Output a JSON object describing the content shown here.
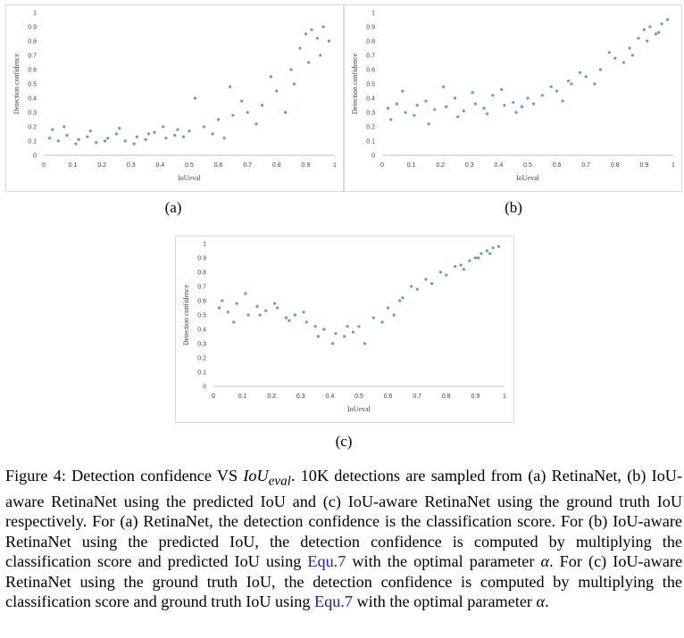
{
  "chart_data": [
    {
      "type": "scatter",
      "sublabel": "(a)",
      "xlabel": "IoUeval",
      "ylabel": "Detection confidence",
      "xlim": [
        0,
        1
      ],
      "ylim": [
        0,
        1
      ],
      "xticks": [
        "0",
        "0.1",
        "0.2",
        "0.3",
        "0.4",
        "0.5",
        "0.6",
        "0.7",
        "0.8",
        "0.9",
        "1"
      ],
      "yticks": [
        "0",
        "0.1",
        "0.2",
        "0.3",
        "0.4",
        "0.5",
        "0.6",
        "0.7",
        "0.8",
        "0.9",
        "1"
      ],
      "grid": false,
      "color": "#5b9bd5",
      "x": [
        0.02,
        0.05,
        0.08,
        0.12,
        0.15,
        0.18,
        0.22,
        0.25,
        0.28,
        0.32,
        0.35,
        0.38,
        0.42,
        0.45,
        0.48,
        0.03,
        0.07,
        0.11,
        0.16,
        0.21,
        0.26,
        0.31,
        0.36,
        0.41,
        0.46,
        0.5,
        0.55,
        0.6,
        0.65,
        0.7,
        0.75,
        0.8,
        0.85,
        0.88,
        0.9,
        0.92,
        0.94,
        0.96,
        0.98,
        0.86,
        0.91,
        0.95,
        0.62,
        0.68,
        0.73,
        0.78,
        0.83,
        0.52,
        0.58,
        0.64
      ],
      "y": [
        0.12,
        0.1,
        0.14,
        0.11,
        0.13,
        0.09,
        0.12,
        0.15,
        0.1,
        0.13,
        0.11,
        0.16,
        0.12,
        0.14,
        0.13,
        0.18,
        0.2,
        0.08,
        0.17,
        0.1,
        0.19,
        0.08,
        0.15,
        0.2,
        0.18,
        0.17,
        0.2,
        0.25,
        0.28,
        0.3,
        0.35,
        0.45,
        0.6,
        0.75,
        0.85,
        0.88,
        0.82,
        0.9,
        0.8,
        0.5,
        0.65,
        0.7,
        0.12,
        0.38,
        0.22,
        0.55,
        0.3,
        0.4,
        0.15,
        0.48
      ]
    },
    {
      "type": "scatter",
      "sublabel": "(b)",
      "xlabel": "IoUeval",
      "ylabel": "Detection confidence",
      "xlim": [
        0,
        1
      ],
      "ylim": [
        0,
        1
      ],
      "xticks": [
        "0",
        "0.1",
        "0.2",
        "0.3",
        "0.4",
        "0.5",
        "0.6",
        "0.7",
        "0.8",
        "0.9",
        "1"
      ],
      "yticks": [
        "0",
        "0.1",
        "0.2",
        "0.3",
        "0.4",
        "0.5",
        "0.6",
        "0.7",
        "0.8",
        "0.9",
        "1"
      ],
      "grid": false,
      "color": "#5b9bd5",
      "x": [
        0.02,
        0.05,
        0.08,
        0.12,
        0.15,
        0.18,
        0.22,
        0.25,
        0.28,
        0.32,
        0.35,
        0.38,
        0.42,
        0.45,
        0.48,
        0.03,
        0.07,
        0.11,
        0.16,
        0.21,
        0.26,
        0.31,
        0.36,
        0.41,
        0.46,
        0.5,
        0.55,
        0.6,
        0.65,
        0.7,
        0.75,
        0.8,
        0.85,
        0.88,
        0.9,
        0.92,
        0.94,
        0.96,
        0.98,
        0.86,
        0.91,
        0.95,
        0.62,
        0.68,
        0.73,
        0.78,
        0.83,
        0.52,
        0.58,
        0.64
      ],
      "y": [
        0.33,
        0.36,
        0.3,
        0.35,
        0.38,
        0.32,
        0.34,
        0.4,
        0.31,
        0.36,
        0.33,
        0.42,
        0.35,
        0.37,
        0.34,
        0.25,
        0.45,
        0.28,
        0.22,
        0.48,
        0.27,
        0.44,
        0.29,
        0.46,
        0.3,
        0.4,
        0.42,
        0.45,
        0.5,
        0.55,
        0.6,
        0.68,
        0.75,
        0.82,
        0.88,
        0.9,
        0.85,
        0.92,
        0.95,
        0.7,
        0.8,
        0.86,
        0.38,
        0.58,
        0.5,
        0.72,
        0.65,
        0.36,
        0.48,
        0.52
      ]
    },
    {
      "type": "scatter",
      "sublabel": "(c)",
      "xlabel": "IoUeval",
      "ylabel": "Detection confidence",
      "xlim": [
        0,
        1
      ],
      "ylim": [
        0,
        1
      ],
      "xticks": [
        "0",
        "0.1",
        "0.2",
        "0.3",
        "0.4",
        "0.5",
        "0.6",
        "0.7",
        "0.8",
        "0.9",
        "1"
      ],
      "yticks": [
        "0",
        "0.1",
        "0.2",
        "0.3",
        "0.4",
        "0.5",
        "0.6",
        "0.7",
        "0.8",
        "0.9",
        "1"
      ],
      "grid": false,
      "color": "#5b9bd5",
      "x": [
        0.02,
        0.05,
        0.08,
        0.12,
        0.15,
        0.18,
        0.22,
        0.25,
        0.28,
        0.32,
        0.35,
        0.38,
        0.42,
        0.45,
        0.48,
        0.03,
        0.07,
        0.11,
        0.16,
        0.21,
        0.26,
        0.31,
        0.36,
        0.41,
        0.46,
        0.5,
        0.55,
        0.6,
        0.65,
        0.7,
        0.75,
        0.8,
        0.85,
        0.88,
        0.9,
        0.92,
        0.94,
        0.96,
        0.98,
        0.86,
        0.91,
        0.95,
        0.62,
        0.68,
        0.73,
        0.78,
        0.83,
        0.52,
        0.58,
        0.64
      ],
      "y": [
        0.55,
        0.52,
        0.58,
        0.5,
        0.56,
        0.53,
        0.55,
        0.48,
        0.5,
        0.45,
        0.42,
        0.4,
        0.37,
        0.35,
        0.38,
        0.6,
        0.45,
        0.65,
        0.5,
        0.58,
        0.46,
        0.52,
        0.35,
        0.3,
        0.42,
        0.42,
        0.48,
        0.55,
        0.62,
        0.68,
        0.72,
        0.78,
        0.85,
        0.88,
        0.9,
        0.93,
        0.95,
        0.97,
        0.98,
        0.82,
        0.9,
        0.93,
        0.5,
        0.7,
        0.75,
        0.8,
        0.84,
        0.3,
        0.45,
        0.6
      ]
    }
  ],
  "caption": {
    "label": "Figure 4:",
    "title_pre": "Detection confidence VS",
    "title_math_base": "IoU",
    "title_math_sub": "eval",
    "text_1": ". 10K detections are sampled from (a) RetinaNet, (b) IoU-aware RetinaNet using the predicted IoU and (c) IoU-aware RetinaNet using the ground truth IoU respectively. For (a) RetinaNet, the detection confidence is the classification score. For (b) IoU-aware RetinaNet using the predicted IoU, the detection confidence is computed by multiplying the classification score and predicted IoU using",
    "equ_ref_1": "Equ.7",
    "text_2": "with the optimal parameter",
    "alpha_1": "α",
    "text_3": ". For (c) IoU-aware RetinaNet using the ground truth IoU, the detection confidence is computed by multiplying the classification score and ground truth IoU using",
    "equ_ref_2": "Equ.7",
    "text_4": "with the optimal parameter",
    "alpha_2": "α",
    "text_5": "."
  }
}
